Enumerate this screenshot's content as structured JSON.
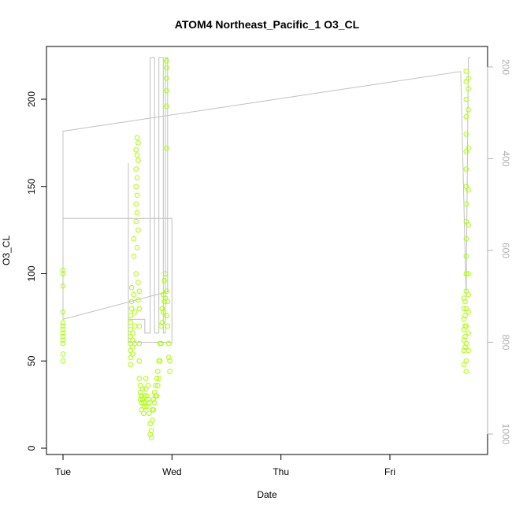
{
  "chart_data": {
    "type": "scatter",
    "title": "ATOM4 Northeast_Pacific_1 O3_CL",
    "xlabel": "Date",
    "ylabel": "O3_CL",
    "x_ticks": [
      "Tue",
      "Wed",
      "Thu",
      "Fri"
    ],
    "xlim": [
      -0.1,
      3.9
    ],
    "ylim": [
      -2,
      231
    ],
    "y_ticks": [
      0,
      50,
      100,
      150,
      200
    ],
    "right_axis": {
      "ticks": [
        200,
        400,
        600,
        800,
        1000
      ],
      "range_top": 172,
      "range_bottom": 1025,
      "note": "inverted pressure axis",
      "color": "#b0b0b0"
    },
    "grid": false,
    "colors": {
      "points": "#aaff00",
      "line": "#c0c0c0",
      "axis": "#000000",
      "right_axis": "#b0b0b0"
    },
    "series": [
      {
        "values_description": "O3_CL scatter",
        "points": [
          [
            0.0,
            100
          ],
          [
            0.0,
            102
          ],
          [
            0.0,
            93
          ],
          [
            0.0,
            78
          ],
          [
            0.0,
            72
          ],
          [
            0.0,
            70
          ],
          [
            0.0,
            68
          ],
          [
            0.0,
            66
          ],
          [
            0.0,
            64
          ],
          [
            0.0,
            62
          ],
          [
            0.0,
            60
          ],
          [
            0.0,
            54
          ],
          [
            0.0,
            50
          ],
          [
            0.62,
            76
          ],
          [
            0.62,
            72
          ],
          [
            0.62,
            68
          ],
          [
            0.62,
            64
          ],
          [
            0.62,
            60
          ],
          [
            0.62,
            56
          ],
          [
            0.62,
            52
          ],
          [
            0.62,
            48
          ],
          [
            0.63,
            92
          ],
          [
            0.63,
            84
          ],
          [
            0.63,
            80
          ],
          [
            0.64,
            66
          ],
          [
            0.64,
            62
          ],
          [
            0.64,
            58
          ],
          [
            0.64,
            54
          ],
          [
            0.65,
            120
          ],
          [
            0.65,
            110
          ],
          [
            0.65,
            88
          ],
          [
            0.66,
            78
          ],
          [
            0.66,
            70
          ],
          [
            0.66,
            60
          ],
          [
            0.67,
            171
          ],
          [
            0.67,
            160
          ],
          [
            0.67,
            150
          ],
          [
            0.67,
            140
          ],
          [
            0.67,
            130
          ],
          [
            0.67,
            100
          ],
          [
            0.68,
            178
          ],
          [
            0.68,
            168
          ],
          [
            0.68,
            155
          ],
          [
            0.68,
            145
          ],
          [
            0.68,
            135
          ],
          [
            0.68,
            115
          ],
          [
            0.69,
            175
          ],
          [
            0.69,
            165
          ],
          [
            0.69,
            125
          ],
          [
            0.69,
            95
          ],
          [
            0.69,
            85
          ],
          [
            0.7,
            90
          ],
          [
            0.7,
            80
          ],
          [
            0.7,
            70
          ],
          [
            0.7,
            60
          ],
          [
            0.7,
            50
          ],
          [
            0.7,
            40
          ],
          [
            0.71,
            36
          ],
          [
            0.71,
            32
          ],
          [
            0.71,
            28
          ],
          [
            0.72,
            30
          ],
          [
            0.72,
            26
          ],
          [
            0.72,
            22
          ],
          [
            0.73,
            34
          ],
          [
            0.73,
            28
          ],
          [
            0.74,
            26
          ],
          [
            0.74,
            20
          ],
          [
            0.75,
            30
          ],
          [
            0.75,
            24
          ],
          [
            0.76,
            40
          ],
          [
            0.76,
            34
          ],
          [
            0.77,
            30
          ],
          [
            0.77,
            24
          ],
          [
            0.78,
            36
          ],
          [
            0.78,
            28
          ],
          [
            0.79,
            26
          ],
          [
            0.79,
            20
          ],
          [
            0.8,
            14
          ],
          [
            0.8,
            8
          ],
          [
            0.81,
            6
          ],
          [
            0.81,
            10
          ],
          [
            0.82,
            22
          ],
          [
            0.82,
            16
          ],
          [
            0.83,
            28
          ],
          [
            0.83,
            22
          ],
          [
            0.84,
            32
          ],
          [
            0.84,
            26
          ],
          [
            0.85,
            36
          ],
          [
            0.85,
            30
          ],
          [
            0.86,
            40
          ],
          [
            0.86,
            30
          ],
          [
            0.87,
            44
          ],
          [
            0.87,
            36
          ],
          [
            0.88,
            50
          ],
          [
            0.88,
            40
          ],
          [
            0.89,
            60
          ],
          [
            0.89,
            50
          ],
          [
            0.9,
            70
          ],
          [
            0.9,
            60
          ],
          [
            0.91,
            80
          ],
          [
            0.91,
            72
          ],
          [
            0.92,
            88
          ],
          [
            0.92,
            78
          ],
          [
            0.93,
            96
          ],
          [
            0.93,
            84
          ],
          [
            0.94,
            100
          ],
          [
            0.94,
            86
          ],
          [
            0.95,
            90
          ],
          [
            0.95,
            76
          ],
          [
            0.96,
            84
          ],
          [
            0.96,
            70
          ],
          [
            0.97,
            60
          ],
          [
            0.97,
            52
          ],
          [
            0.98,
            50
          ],
          [
            0.98,
            44
          ],
          [
            0.95,
            222
          ],
          [
            0.95,
            218
          ],
          [
            0.95,
            212
          ],
          [
            0.95,
            205
          ],
          [
            0.95,
            196
          ],
          [
            0.95,
            172
          ],
          [
            3.7,
            216
          ],
          [
            3.7,
            210
          ],
          [
            3.7,
            200
          ],
          [
            3.7,
            190
          ],
          [
            3.7,
            180
          ],
          [
            3.7,
            170
          ],
          [
            3.7,
            160
          ],
          [
            3.7,
            150
          ],
          [
            3.7,
            140
          ],
          [
            3.7,
            130
          ],
          [
            3.7,
            120
          ],
          [
            3.7,
            110
          ],
          [
            3.7,
            100
          ],
          [
            3.7,
            90
          ],
          [
            3.7,
            80
          ],
          [
            3.7,
            70
          ],
          [
            3.7,
            60
          ],
          [
            3.7,
            50
          ],
          [
            3.7,
            44
          ],
          [
            3.68,
            86
          ],
          [
            3.68,
            80
          ],
          [
            3.68,
            74
          ],
          [
            3.68,
            68
          ],
          [
            3.68,
            62
          ],
          [
            3.68,
            56
          ],
          [
            3.68,
            48
          ],
          [
            3.69,
            84
          ],
          [
            3.69,
            76
          ],
          [
            3.69,
            70
          ],
          [
            3.69,
            64
          ],
          [
            3.69,
            58
          ],
          [
            3.72,
            212
          ],
          [
            3.72,
            206
          ],
          [
            3.72,
            194
          ],
          [
            3.72,
            172
          ],
          [
            3.72,
            148
          ],
          [
            3.72,
            128
          ],
          [
            3.72,
            100
          ],
          [
            3.72,
            88
          ],
          [
            3.72,
            78
          ],
          [
            3.72,
            66
          ],
          [
            3.72,
            56
          ]
        ]
      }
    ],
    "pressure_line": [
      [
        0.0,
        400
      ],
      [
        0.0,
        400
      ],
      [
        0.0,
        530
      ],
      [
        1.0,
        530
      ],
      [
        1.0,
        800
      ],
      [
        0.6,
        800
      ],
      [
        0.6,
        410
      ],
      [
        0.6,
        750
      ],
      [
        0.75,
        750
      ],
      [
        0.75,
        780
      ],
      [
        0.8,
        780
      ],
      [
        0.8,
        180
      ],
      [
        0.84,
        180
      ],
      [
        0.84,
        780
      ],
      [
        0.88,
        780
      ],
      [
        0.88,
        180
      ],
      [
        0.92,
        180
      ],
      [
        0.92,
        780
      ],
      [
        0.94,
        780
      ],
      [
        0.94,
        180
      ],
      [
        0.96,
        180
      ],
      [
        0.96,
        690
      ],
      [
        0.0,
        750
      ],
      [
        0.0,
        340
      ],
      [
        3.65,
        210
      ],
      [
        3.7,
        700
      ],
      [
        3.72,
        180
      ],
      [
        3.74,
        180
      ]
    ]
  }
}
